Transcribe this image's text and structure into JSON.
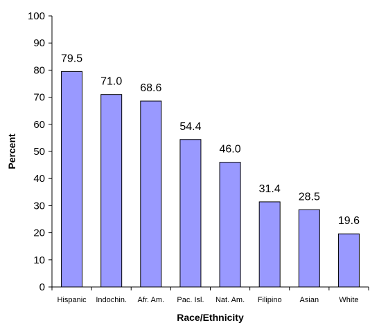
{
  "chart_data": {
    "type": "bar",
    "title": "",
    "xlabel": "Race/Ethnicity",
    "ylabel": "Percent",
    "categories": [
      "Hispanic",
      "Indochin.",
      "Afr. Am.",
      "Pac. Isl.",
      "Nat. Am.",
      "Filipino",
      "Asian",
      "White"
    ],
    "values": [
      79.5,
      71.0,
      68.6,
      54.4,
      46.0,
      31.4,
      28.5,
      19.6
    ],
    "value_labels": [
      "79.5",
      "71.0",
      "68.6",
      "54.4",
      "46.0",
      "31.4",
      "28.5",
      "19.6"
    ],
    "ylim": [
      0,
      100
    ],
    "yticks": [
      "0",
      "10",
      "20",
      "30",
      "40",
      "50",
      "60",
      "70",
      "80",
      "90",
      "100"
    ],
    "grid": false,
    "legend": "none",
    "colors": {
      "bar_fill": "#9999ff",
      "bar_stroke": "#000000",
      "axis": "#000000"
    }
  }
}
